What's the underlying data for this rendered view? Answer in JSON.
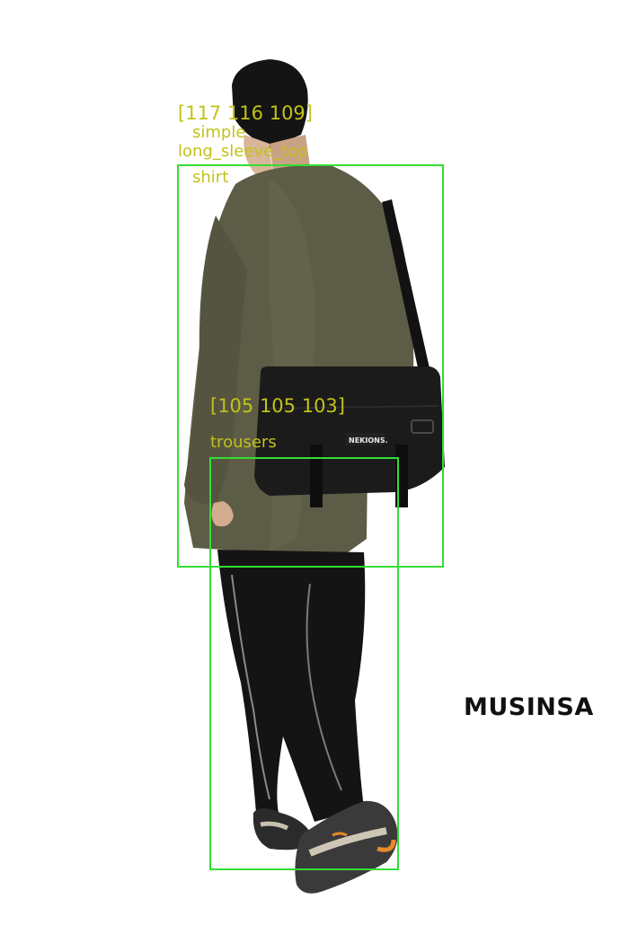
{
  "brand": "MUSINSA",
  "bag_label": "NEKIONS.",
  "detections": [
    {
      "color": "[117 116 109]",
      "style": "simple",
      "category": "long_sleeve_top",
      "name": "shirt"
    },
    {
      "color": "[105 105 103]",
      "category": "trousers"
    }
  ],
  "colors": {
    "box": "#33dd33",
    "label": "#c2c21a",
    "shirt": "#5e5d48",
    "trousers": "#151515",
    "bag": "#1b1b1b"
  }
}
